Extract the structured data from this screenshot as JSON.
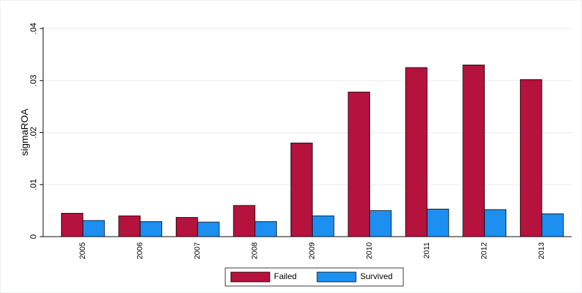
{
  "chart_data": {
    "type": "bar",
    "y_label": "sigmaROA",
    "categories": [
      "2005",
      "2006",
      "2007",
      "2008",
      "2009",
      "2010",
      "2011",
      "2012",
      "2013"
    ],
    "series": [
      {
        "name": "Failed",
        "color": "#b5123d",
        "values": [
          0.0045,
          0.004,
          0.0037,
          0.006,
          0.018,
          0.0278,
          0.0325,
          0.033,
          0.0302
        ]
      },
      {
        "name": "Survived",
        "color": "#1c8ff0",
        "values": [
          0.0031,
          0.0029,
          0.0028,
          0.0029,
          0.004,
          0.005,
          0.0053,
          0.0052,
          0.0044
        ]
      }
    ],
    "ylim": [
      0,
      0.04
    ],
    "yticks": [
      0,
      {
        "value": 0.01,
        "label": ".01"
      },
      {
        "value": 0.02,
        "label": ".02"
      },
      {
        "value": 0.03,
        "label": ".03"
      },
      {
        "value": 0.04,
        "label": ".04"
      }
    ],
    "grid": true,
    "legend": "bottom"
  }
}
